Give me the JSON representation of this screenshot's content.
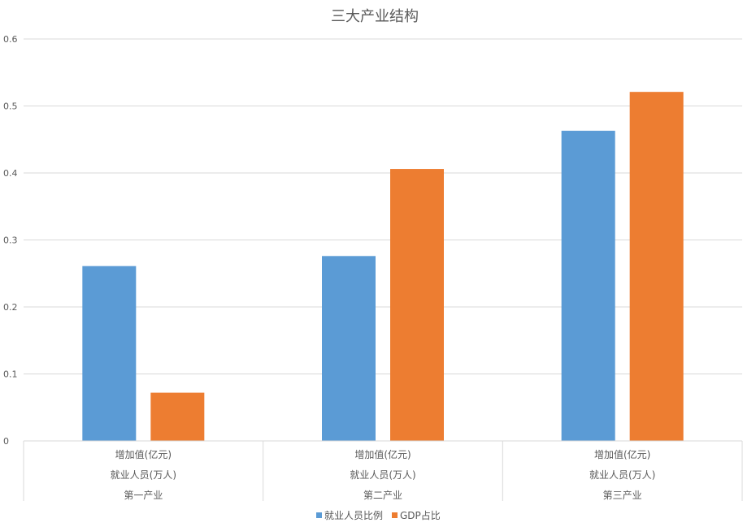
{
  "chart_data": {
    "type": "bar",
    "title": "三大产业结构",
    "xlabel": "",
    "ylabel": "",
    "ylim": [
      0,
      0.6
    ],
    "yticks": [
      "0",
      "0.1",
      "0.2",
      "0.3",
      "0.4",
      "0.5",
      "0.6"
    ],
    "grid": true,
    "legend_position": "bottom",
    "category_rows": [
      "增加值(亿元)",
      "就业人员(万人)"
    ],
    "categories": [
      "第一产业",
      "第二产业",
      "第三产业"
    ],
    "series": [
      {
        "name": "就业人员比例",
        "color": "#5B9BD5",
        "values": [
          0.261,
          0.276,
          0.463
        ]
      },
      {
        "name": "GDP占比",
        "color": "#ED7D31",
        "values": [
          0.072,
          0.406,
          0.521
        ]
      }
    ]
  }
}
